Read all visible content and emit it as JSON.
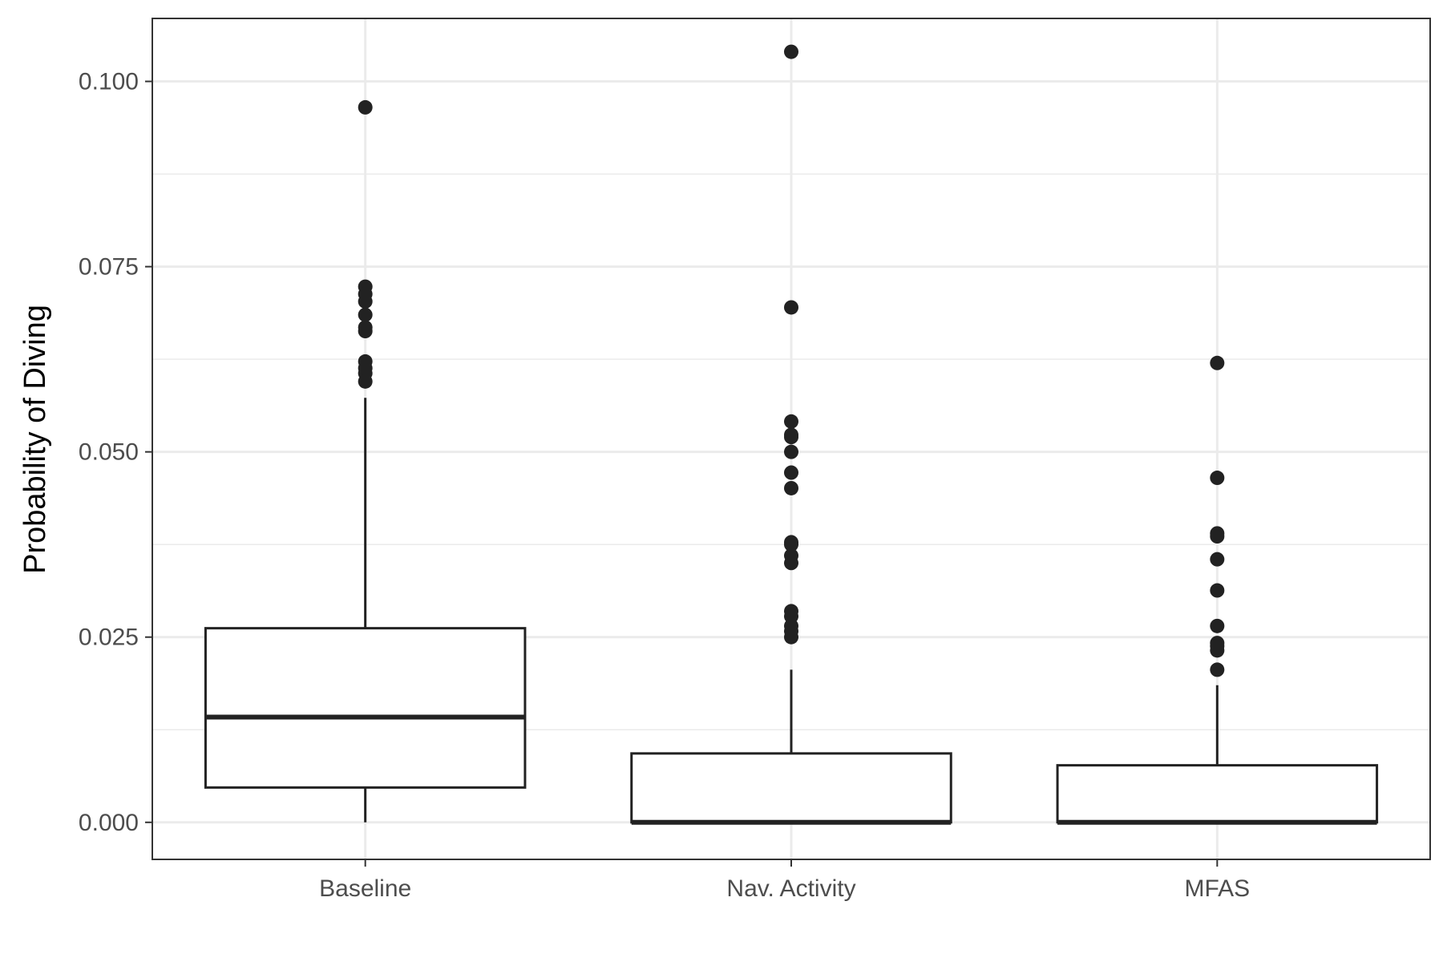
{
  "chart_data": {
    "type": "boxplot",
    "title": "",
    "xlabel": "",
    "ylabel": "Probability of Diving",
    "ylim": [
      -0.005,
      0.1085
    ],
    "yticks": [
      0.0,
      0.025,
      0.05,
      0.075,
      0.1
    ],
    "ytick_labels": [
      "0.000",
      "0.025",
      "0.050",
      "0.075",
      "0.100"
    ],
    "grid": true,
    "legend": "none",
    "colors": {
      "box_stroke": "#222222",
      "box_fill": "#ffffff",
      "grid": "#ebebeb",
      "panel_border": "#333333",
      "point": "#222222"
    },
    "categories": [
      "Baseline",
      "Nav. Activity",
      "MFAS"
    ],
    "boxes": [
      {
        "category": "Baseline",
        "whisker_low": 0.0,
        "q1": 0.0047,
        "median": 0.0142,
        "q3": 0.0262,
        "whisker_high": 0.0573,
        "outliers": [
          0.0965,
          0.0723,
          0.0713,
          0.0703,
          0.0685,
          0.0668,
          0.0663,
          0.0622,
          0.0613,
          0.0606,
          0.0595
        ]
      },
      {
        "category": "Nav. Activity",
        "whisker_low": 0.0,
        "q1": 0.0,
        "median": 0.0,
        "q3": 0.0093,
        "whisker_high": 0.0206,
        "outliers": [
          0.104,
          0.0695,
          0.0541,
          0.0523,
          0.052,
          0.05,
          0.0472,
          0.0451,
          0.0378,
          0.0375,
          0.036,
          0.035,
          0.0285,
          0.0278,
          0.0265,
          0.0258,
          0.025
        ]
      },
      {
        "category": "MFAS",
        "whisker_low": 0.0,
        "q1": 0.0,
        "median": 0.0,
        "q3": 0.0077,
        "whisker_high": 0.0185,
        "outliers": [
          0.062,
          0.0465,
          0.039,
          0.0386,
          0.0355,
          0.0313,
          0.0265,
          0.0242,
          0.0238,
          0.0232,
          0.0206
        ]
      }
    ]
  }
}
